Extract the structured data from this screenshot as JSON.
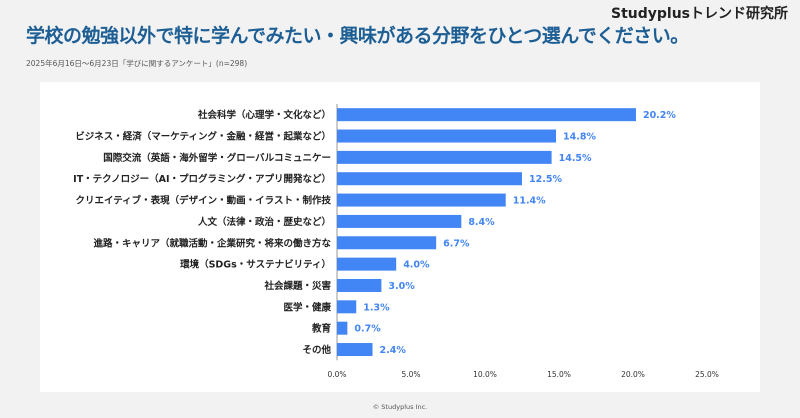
{
  "brand": "Studyplusトレンド研究所",
  "title": "学校の勉強以外で特に学んでみたい・興味がある分野をひとつ選んでください。",
  "subtitle": "2025年6月16日～6月23日「学びに関するアンケート」(n=298)",
  "footer": "© Studyplus Inc.",
  "chart_data": {
    "type": "bar",
    "orientation": "horizontal",
    "categories": [
      "社会科学（心理学・文化など）",
      "ビジネス・経済（マーケティング・金融・経営・起業など）",
      "国際交流（英語・海外留学・グローバルコミュニケー",
      "IT・テクノロジー（AI・プログラミング・アプリ開発など）",
      "クリエイティブ・表現（デザイン・動画・イラスト・制作技",
      "人文（法律・政治・歴史など）",
      "進路・キャリア（就職活動・企業研究・将来の働き方な",
      "環境（SDGs・サステナビリティ）",
      "社会課題・災害",
      "医学・健康",
      "教育",
      "その他"
    ],
    "values": [
      20.2,
      14.8,
      14.5,
      12.5,
      11.4,
      8.4,
      6.7,
      4.0,
      3.0,
      1.3,
      0.7,
      2.4
    ],
    "data_labels": [
      "20.2%",
      "14.8%",
      "14.5%",
      "12.5%",
      "11.4%",
      "8.4%",
      "6.7%",
      "4.0%",
      "3.0%",
      "1.3%",
      "0.7%",
      "2.4%"
    ],
    "xticks": [
      "0.0%",
      "5.0%",
      "10.0%",
      "15.0%",
      "20.0%",
      "25.0%"
    ],
    "xlim": [
      0,
      25
    ],
    "grid": false,
    "bar_color": "#4285f4",
    "label_color": "#4285f4"
  }
}
